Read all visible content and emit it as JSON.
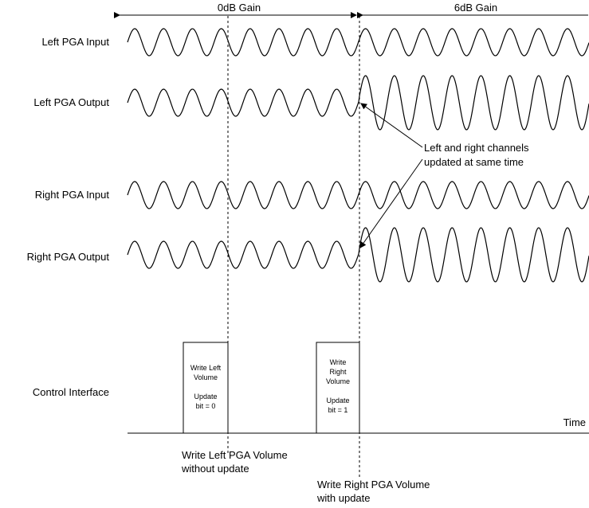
{
  "gain_labels": {
    "left": "0dB Gain",
    "right": "6dB Gain"
  },
  "signals": [
    {
      "id": "left-pga-input",
      "label": "Left PGA Input"
    },
    {
      "id": "left-pga-output",
      "label": "Left PGA Output"
    },
    {
      "id": "right-pga-input",
      "label": "Right PGA Input"
    },
    {
      "id": "right-pga-output",
      "label": "Right PGA Output"
    },
    {
      "id": "control-interface",
      "label": "Control Interface"
    }
  ],
  "annotation": {
    "line1": "Left and right channels",
    "line2": "updated at same time"
  },
  "write_left_box": [
    "Write Left",
    "Volume",
    "",
    "Update",
    "bit = 0"
  ],
  "write_right_box": [
    "Write",
    "Right",
    "Volume",
    "",
    "Update",
    "bit = 1"
  ],
  "time_label": "Time",
  "bottom_notes": {
    "left_line1": "Write Left PGA Volume",
    "left_line2": "without update",
    "right_line1": "Write Right PGA Volume",
    "right_line2": "with update"
  }
}
